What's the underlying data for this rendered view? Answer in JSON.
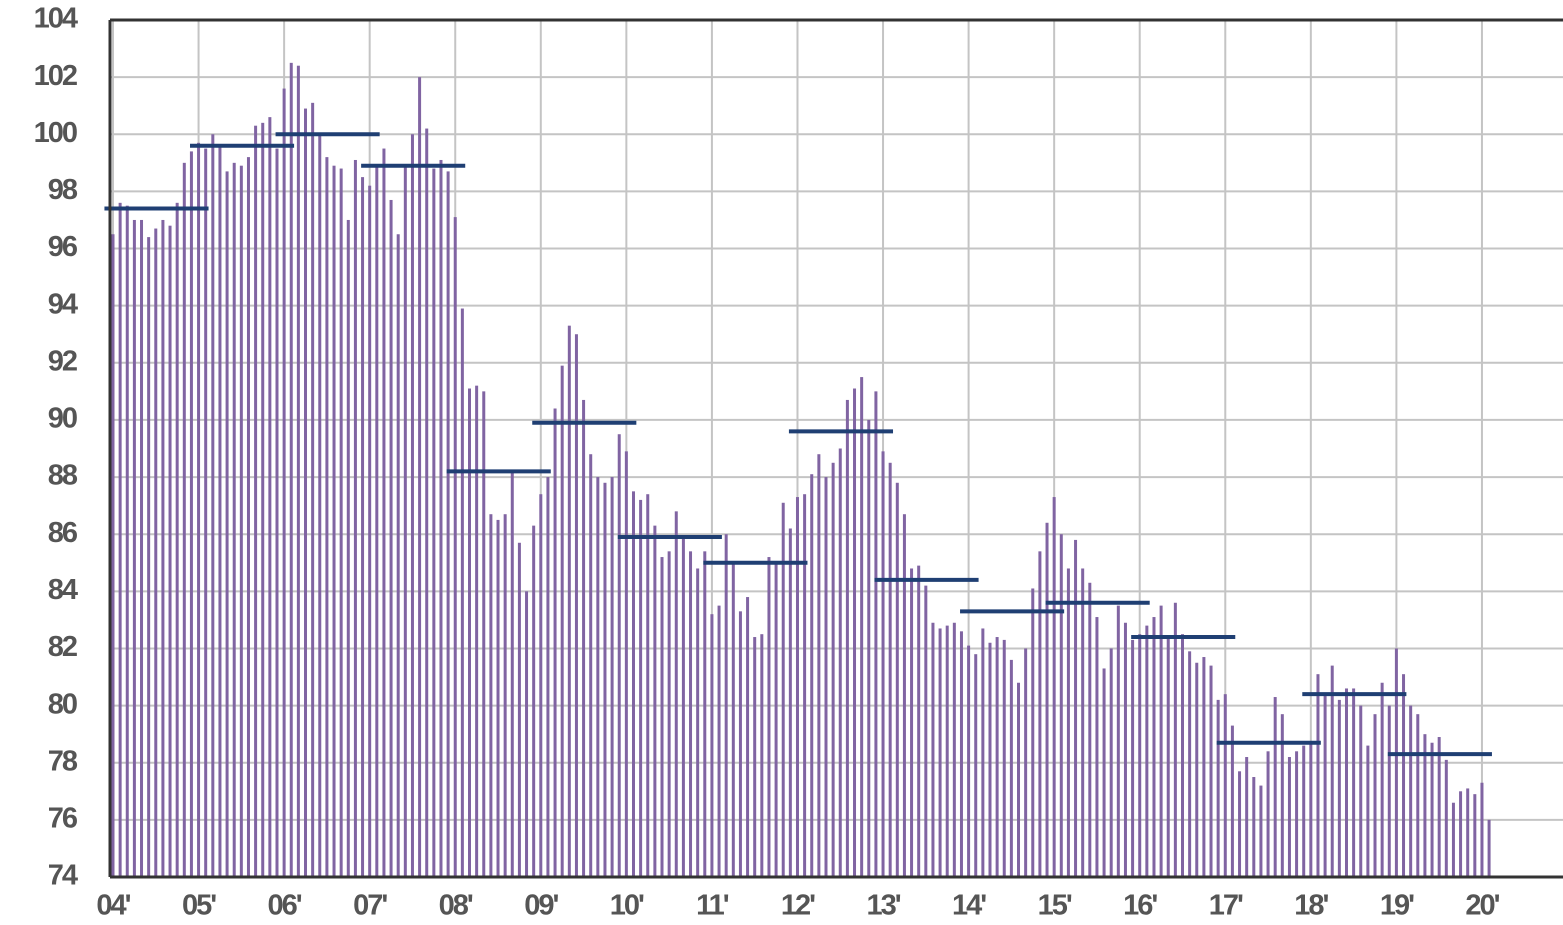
{
  "chart_data": {
    "type": "bar",
    "categories": [
      "04'",
      null,
      null,
      null,
      null,
      null,
      null,
      null,
      null,
      null,
      null,
      null,
      "05'",
      null,
      null,
      null,
      null,
      null,
      null,
      null,
      null,
      null,
      null,
      null,
      "06'",
      null,
      null,
      null,
      null,
      null,
      null,
      null,
      null,
      null,
      null,
      null,
      "07'",
      null,
      null,
      null,
      null,
      null,
      null,
      null,
      null,
      null,
      null,
      null,
      "08'",
      null,
      null,
      null,
      null,
      null,
      null,
      null,
      null,
      null,
      null,
      null,
      "09'",
      null,
      null,
      null,
      null,
      null,
      null,
      null,
      null,
      null,
      null,
      null,
      "10'",
      null,
      null,
      null,
      null,
      null,
      null,
      null,
      null,
      null,
      null,
      null,
      "11'",
      null,
      null,
      null,
      null,
      null,
      null,
      null,
      null,
      null,
      null,
      null,
      "12'",
      null,
      null,
      null,
      null,
      null,
      null,
      null,
      null,
      null,
      null,
      null,
      "13'",
      null,
      null,
      null,
      null,
      null,
      null,
      null,
      null,
      null,
      null,
      null,
      "14'",
      null,
      null,
      null,
      null,
      null,
      null,
      null,
      null,
      null,
      null,
      null,
      "15'",
      null,
      null,
      null,
      null,
      null,
      null,
      null,
      null,
      null,
      null,
      null,
      "16'",
      null,
      null,
      null,
      null,
      null,
      null,
      null,
      null,
      null,
      null,
      null,
      "17'",
      null,
      null,
      null,
      null,
      null,
      null,
      null,
      null,
      null,
      null,
      null,
      "18'",
      null,
      null,
      null,
      null,
      null,
      null,
      null,
      null,
      null,
      null,
      null,
      "19'",
      null,
      null,
      null,
      null,
      null,
      null,
      null,
      null,
      null,
      null,
      null,
      "20'",
      null
    ],
    "values": [
      96.5,
      97.6,
      97.5,
      97.0,
      97.0,
      96.4,
      96.7,
      97.0,
      96.8,
      97.6,
      99.0,
      99.4,
      99.7,
      99.5,
      100.0,
      99.6,
      98.7,
      99.0,
      98.9,
      99.2,
      100.3,
      100.4,
      100.6,
      99.5,
      101.6,
      102.5,
      102.4,
      100.9,
      101.1,
      100.0,
      99.2,
      98.9,
      98.8,
      97.0,
      99.1,
      98.5,
      98.2,
      98.9,
      99.5,
      97.7,
      96.5,
      98.9,
      100.0,
      102.0,
      100.2,
      98.8,
      99.1,
      98.7,
      97.1,
      93.9,
      91.1,
      91.2,
      91.0,
      86.7,
      86.5,
      86.7,
      88.2,
      85.7,
      84.0,
      86.3,
      87.4,
      88.0,
      90.4,
      91.9,
      93.3,
      93.0,
      90.7,
      88.8,
      88.0,
      87.8,
      88.0,
      89.5,
      88.9,
      87.5,
      87.2,
      87.4,
      86.3,
      85.2,
      85.4,
      86.8,
      85.9,
      85.4,
      84.8,
      85.4,
      83.2,
      83.5,
      86.0,
      85.0,
      83.3,
      83.8,
      82.4,
      82.5,
      85.2,
      85.0,
      87.1,
      86.2,
      87.3,
      87.4,
      88.1,
      88.8,
      88.0,
      88.5,
      89.0,
      90.7,
      91.1,
      91.5,
      90.0,
      91.0,
      88.9,
      88.5,
      87.8,
      86.7,
      84.8,
      84.9,
      84.2,
      82.9,
      82.7,
      82.8,
      82.9,
      82.6,
      82.1,
      81.8,
      82.7,
      82.2,
      82.4,
      82.3,
      81.6,
      80.8,
      82.0,
      84.1,
      85.4,
      86.4,
      87.3,
      86.0,
      84.8,
      85.8,
      84.8,
      84.3,
      83.1,
      81.3,
      82.0,
      83.5,
      82.9,
      82.3,
      82.5,
      82.8,
      83.1,
      83.5,
      82.4,
      83.6,
      82.5,
      81.9,
      81.5,
      81.7,
      81.4,
      80.2,
      80.4,
      79.3,
      77.7,
      78.2,
      77.5,
      77.2,
      78.4,
      80.3,
      79.7,
      78.2,
      78.4,
      78.6,
      78.7,
      81.1,
      80.4,
      81.4,
      80.2,
      80.6,
      80.6,
      80.0,
      78.6,
      79.7,
      80.8,
      80.0,
      82.0,
      81.1,
      80.0,
      79.7,
      79.0,
      78.7,
      78.9,
      78.1,
      76.6,
      77.0,
      77.1,
      76.9,
      77.3,
      76.0
    ],
    "color": "#8064a2",
    "annual_average": {
      "values": [
        97.4,
        99.6,
        100.0,
        98.9,
        88.2,
        89.9,
        85.9,
        85.0,
        89.6,
        84.4,
        83.3,
        83.6,
        82.4,
        78.7,
        80.4,
        78.3
      ],
      "color": "#1f3f73"
    },
    "ylim": [
      74,
      104
    ],
    "yticks": [
      74,
      76,
      78,
      80,
      82,
      84,
      86,
      88,
      90,
      92,
      94,
      96,
      98,
      100,
      102,
      104
    ],
    "grid": true
  }
}
